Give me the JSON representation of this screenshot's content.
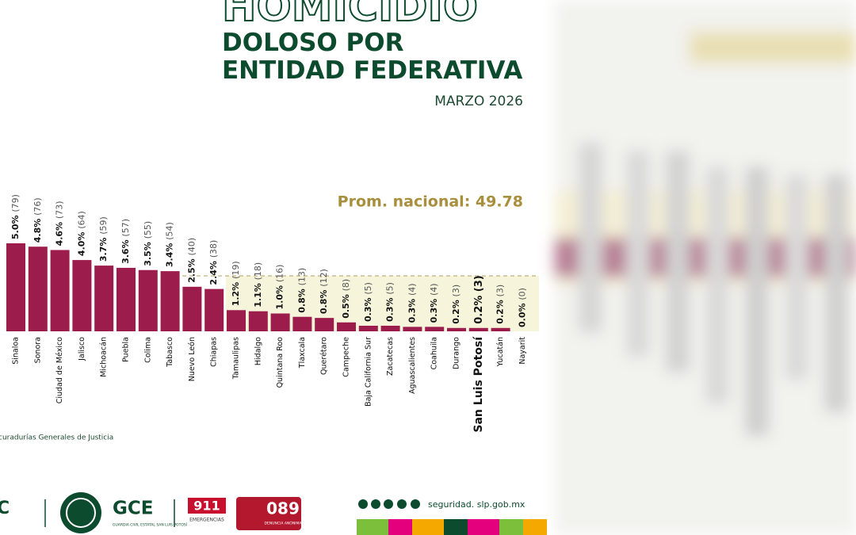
{
  "chart_data": {
    "type": "bar",
    "title": "HOMICIDIO",
    "subtitle": "DOLOSO POR ENTIDAD FEDERATIVA",
    "date": "MARZO 2026",
    "categories": [
      "Sinaloa",
      "Sonora",
      "Ciudad de México",
      "Jalisco",
      "Michoacán",
      "Puebla",
      "Colima",
      "Tabasco",
      "Nuevo León",
      "Chiapas",
      "Tamaulipas",
      "Hidalgo",
      "Quintana Roo",
      "Tlaxcala",
      "Querétaro",
      "Campeche",
      "Baja California Sur",
      "Zacatecas",
      "Aguascalientes",
      "Coahuila",
      "Durango",
      "San Luis Potosí",
      "Yucatán",
      "Nayarit"
    ],
    "values": [
      79,
      76,
      73,
      64,
      59,
      57,
      55,
      54,
      40,
      38,
      19,
      18,
      16,
      13,
      12,
      8,
      5,
      5,
      4,
      4,
      3,
      3,
      3,
      0
    ],
    "value_labels": [
      "5.0% (79)",
      "4.8% (76)",
      "4.6% (73)",
      "4.0% (64)",
      "3.7% (59)",
      "3.6% (57)",
      "3.5% (55)",
      "3.4% (54)",
      "2.5% (40)",
      "2.4% (38)",
      "1.2% (19)",
      "1.1% (18)",
      "1.0% (16)",
      "0.8% (13)",
      "0.8% (12)",
      "0.5% (8)",
      "0.3% (5)",
      "0.3% (5)",
      "0.3% (4)",
      "0.3% (4)",
      "0.2% (3)",
      "0.2% (3)",
      "0.2% (3)",
      "0.0% (0)"
    ],
    "color": "#9c1c4b",
    "highlight": "San Luis Potosí",
    "average": {
      "value": 49.78,
      "label": "Prom. nacional: 49.78"
    },
    "ylim": [
      0,
      100
    ],
    "source": "curadurías Generales de Justicia"
  },
  "footer": {
    "gce": "GCE",
    "gce_sub": "GUARDIA CIVIL ESTATAL SAN LUIS POTOSÍ",
    "n911": "911",
    "n911_sub": "EMERGENCIAS",
    "n089": "089",
    "n089_sub": "DENUNCIA ANÓNIMA",
    "web": "seguridad. slp.gob.mx"
  }
}
